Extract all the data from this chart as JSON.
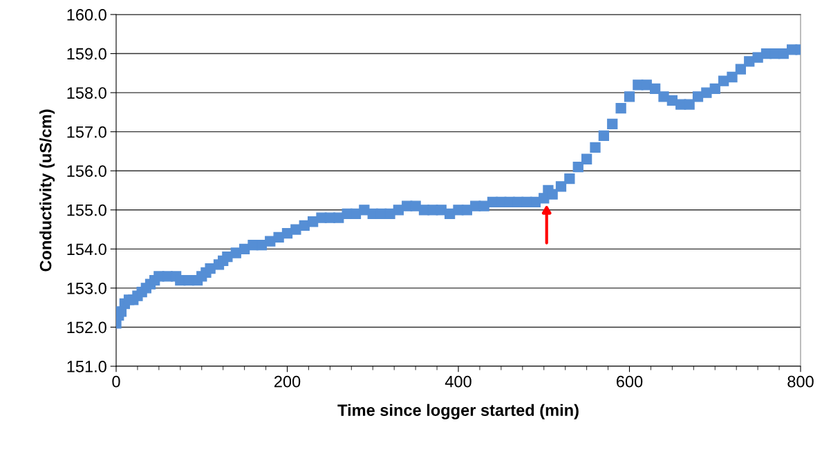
{
  "chart_data": {
    "type": "scatter",
    "xlabel": "Time since logger started (min)",
    "ylabel": "Conductivity (uS/cm)",
    "x": [
      0,
      3,
      6,
      10,
      15,
      20,
      25,
      30,
      35,
      40,
      45,
      50,
      60,
      70,
      75,
      85,
      95,
      100,
      105,
      110,
      120,
      125,
      130,
      140,
      150,
      160,
      170,
      180,
      190,
      200,
      210,
      220,
      230,
      240,
      250,
      260,
      270,
      280,
      290,
      300,
      310,
      320,
      330,
      340,
      350,
      360,
      370,
      380,
      390,
      400,
      410,
      420,
      430,
      440,
      450,
      460,
      470,
      480,
      490,
      500,
      505,
      510,
      520,
      530,
      540,
      550,
      560,
      570,
      580,
      590,
      600,
      610,
      620,
      630,
      640,
      650,
      660,
      670,
      680,
      690,
      700,
      710,
      720,
      730,
      740,
      750,
      760,
      770,
      780,
      790,
      800
    ],
    "series": [
      {
        "color": "#558ed5",
        "values": [
          152.1,
          152.3,
          152.4,
          152.6,
          152.7,
          152.7,
          152.8,
          152.9,
          153.0,
          153.1,
          153.2,
          153.3,
          153.3,
          153.3,
          153.2,
          153.2,
          153.2,
          153.3,
          153.4,
          153.5,
          153.6,
          153.7,
          153.8,
          153.9,
          154.0,
          154.1,
          154.1,
          154.2,
          154.3,
          154.4,
          154.5,
          154.6,
          154.7,
          154.8,
          154.8,
          154.8,
          154.9,
          154.9,
          155.0,
          154.9,
          154.9,
          154.9,
          155.0,
          155.1,
          155.1,
          155.0,
          155.0,
          155.0,
          154.9,
          155.0,
          155.0,
          155.1,
          155.1,
          155.2,
          155.2,
          155.2,
          155.2,
          155.2,
          155.2,
          155.3,
          155.5,
          155.4,
          155.6,
          155.8,
          156.1,
          156.3,
          156.6,
          156.9,
          157.2,
          157.6,
          157.9,
          158.2,
          158.2,
          158.1,
          157.9,
          157.8,
          157.7,
          157.7,
          157.9,
          158.0,
          158.1,
          158.3,
          158.4,
          158.6,
          158.8,
          158.9,
          159.0,
          159.0,
          159.0,
          159.1,
          159.1
        ]
      }
    ],
    "xlim": [
      0,
      800
    ],
    "xticks": [
      0,
      200,
      400,
      600,
      800
    ],
    "ylim": [
      151,
      160
    ],
    "yticks": [
      {
        "value": 151,
        "label": "151.0"
      },
      {
        "value": 152,
        "label": "152.0"
      },
      {
        "value": 153,
        "label": "153.0"
      },
      {
        "value": 154,
        "label": "154.0"
      },
      {
        "value": 155,
        "label": "155.0"
      },
      {
        "value": 156,
        "label": "156.0"
      },
      {
        "value": 157,
        "label": "157.0"
      },
      {
        "value": 158,
        "label": "158.0"
      },
      {
        "value": 159,
        "label": "159.0"
      },
      {
        "value": 160,
        "label": "160.0"
      }
    ],
    "grid": "y",
    "marker": "square"
  }
}
